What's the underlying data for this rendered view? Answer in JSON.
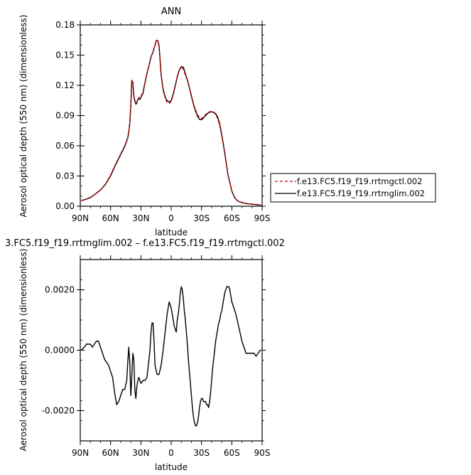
{
  "chart_data": [
    {
      "type": "line",
      "title": "ANN",
      "xlabel": "latitude",
      "ylabel": "Aerosol optical depth (550 nm) (dimensionless)",
      "xlim": [
        90,
        -90
      ],
      "ylim": [
        0,
        0.18
      ],
      "x_ticks": [
        90,
        60,
        30,
        0,
        -30,
        -60,
        -90
      ],
      "x_tick_labels": [
        "90N",
        "60N",
        "30N",
        "0",
        "30S",
        "60S",
        "90S"
      ],
      "y_ticks": [
        0,
        0.03,
        0.06,
        0.09,
        0.12,
        0.15,
        0.18
      ],
      "y_tick_labels": [
        "0.00",
        "0.03",
        "0.06",
        "0.09",
        "0.12",
        "0.15",
        "0.18"
      ],
      "legend_position": "right",
      "series": [
        {
          "name": "f.e13.FC5.f19_f19.rrtmgctl.002",
          "color": "#cc0000",
          "dash": "dashed",
          "x": [
            89,
            85,
            80,
            75,
            70,
            65,
            60,
            55,
            50,
            46,
            43,
            42,
            41,
            40,
            39,
            38,
            37,
            36,
            35,
            34,
            33,
            32,
            31,
            30,
            28,
            26,
            24,
            22,
            20,
            18,
            16,
            15,
            14,
            13,
            12,
            11,
            10,
            8,
            6,
            4,
            2,
            0,
            -2,
            -4,
            -6,
            -8,
            -10,
            -12,
            -13,
            -14,
            -16,
            -18,
            -20,
            -22,
            -24,
            -26,
            -28,
            -30,
            -33,
            -36,
            -39,
            -42,
            -44,
            -46,
            -48,
            -50,
            -53,
            -56,
            -60,
            -63,
            -66,
            -70,
            -75,
            -80,
            -85,
            -89
          ],
          "y": [
            0.0055,
            0.0065,
            0.0085,
            0.012,
            0.016,
            0.022,
            0.031,
            0.042,
            0.052,
            0.06,
            0.068,
            0.074,
            0.082,
            0.1,
            0.125,
            0.123,
            0.11,
            0.106,
            0.102,
            0.103,
            0.107,
            0.108,
            0.107,
            0.109,
            0.113,
            0.123,
            0.132,
            0.14,
            0.148,
            0.153,
            0.16,
            0.164,
            0.165,
            0.164,
            0.159,
            0.145,
            0.13,
            0.115,
            0.107,
            0.103,
            0.102,
            0.104,
            0.11,
            0.119,
            0.128,
            0.135,
            0.138,
            0.136,
            0.133,
            0.13,
            0.125,
            0.118,
            0.11,
            0.102,
            0.096,
            0.091,
            0.088,
            0.087,
            0.09,
            0.093,
            0.094,
            0.093,
            0.091,
            0.087,
            0.08,
            0.07,
            0.052,
            0.032,
            0.015,
            0.008,
            0.005,
            0.0035,
            0.0025,
            0.002,
            0.0015,
            0.001
          ]
        },
        {
          "name": "f.e13.FC5.f19_f19.rrtmglim.002",
          "color": "#000000",
          "dash": "solid",
          "x": [
            89,
            85,
            80,
            75,
            70,
            65,
            60,
            55,
            50,
            46,
            43,
            42,
            41,
            40,
            39,
            38,
            37,
            36,
            35,
            34,
            33,
            32,
            31,
            30,
            28,
            26,
            24,
            22,
            20,
            18,
            16,
            15,
            14,
            13,
            12,
            11,
            10,
            8,
            6,
            4,
            2,
            0,
            -2,
            -4,
            -6,
            -8,
            -10,
            -12,
            -13,
            -14,
            -16,
            -18,
            -20,
            -22,
            -24,
            -26,
            -28,
            -30,
            -33,
            -36,
            -39,
            -42,
            -44,
            -46,
            -48,
            -50,
            -53,
            -56,
            -60,
            -63,
            -66,
            -70,
            -75,
            -80,
            -85,
            -89
          ],
          "y": [
            0.0057,
            0.0067,
            0.0087,
            0.0122,
            0.0162,
            0.0218,
            0.0302,
            0.0412,
            0.0512,
            0.0593,
            0.0677,
            0.0737,
            0.0825,
            0.1,
            0.125,
            0.1229,
            0.1091,
            0.1045,
            0.1013,
            0.1022,
            0.1061,
            0.1069,
            0.1059,
            0.1081,
            0.1119,
            0.1221,
            0.1317,
            0.1396,
            0.1482,
            0.1532,
            0.1599,
            0.1637,
            0.1648,
            0.1636,
            0.1589,
            0.1451,
            0.1307,
            0.1162,
            0.1085,
            0.1046,
            0.1034,
            0.1049,
            0.1112,
            0.1198,
            0.1285,
            0.1355,
            0.1387,
            0.138,
            0.1348,
            0.1315,
            0.1255,
            0.1175,
            0.1092,
            0.1011,
            0.0946,
            0.0894,
            0.0862,
            0.0858,
            0.0888,
            0.0922,
            0.0937,
            0.0934,
            0.0918,
            0.0885,
            0.0818,
            0.0712,
            0.0529,
            0.0323,
            0.0151,
            0.0081,
            0.0051,
            0.0036,
            0.0026,
            0.002,
            0.0015,
            0.001
          ]
        }
      ]
    },
    {
      "type": "line",
      "title": "3.FC5.f19_f19.rrtmglim.002 – f.e13.FC5.f19_f19.rrtmgctl.002",
      "xlabel": "latitude",
      "ylabel": "Aerosol optical depth (550 nm) (dimensionless)",
      "xlim": [
        90,
        -90
      ],
      "ylim": [
        -0.003,
        0.003
      ],
      "x_ticks": [
        90,
        60,
        30,
        0,
        -30,
        -60,
        -90
      ],
      "x_tick_labels": [
        "90N",
        "60N",
        "30N",
        "0",
        "30S",
        "60S",
        "90S"
      ],
      "y_ticks": [
        -0.002,
        0,
        0.002
      ],
      "y_tick_labels": [
        "-0.0020",
        "0.0000",
        "0.0020"
      ],
      "series": [
        {
          "name": "",
          "color": "#000000",
          "dash": "solid",
          "x": [
            89,
            86,
            84,
            82,
            80,
            78,
            76,
            74,
            72,
            70,
            68,
            66,
            64,
            62,
            60,
            58,
            56,
            54,
            52,
            50,
            48,
            46,
            44,
            43,
            42,
            41,
            40,
            39,
            38,
            37,
            36,
            35,
            34,
            33,
            32,
            31,
            30,
            28,
            26,
            24,
            23,
            22,
            21,
            20,
            19,
            18,
            17,
            16,
            14,
            12,
            10,
            8,
            6,
            4,
            2,
            1,
            0,
            -1,
            -2,
            -3,
            -4,
            -5,
            -6,
            -7,
            -8,
            -9,
            -10,
            -11,
            -12,
            -13,
            -14,
            -15,
            -16,
            -17,
            -18,
            -19,
            -20,
            -21,
            -22,
            -23,
            -24,
            -25,
            -26,
            -27,
            -28,
            -29,
            -30,
            -31,
            -32,
            -33,
            -34,
            -35,
            -36,
            -37,
            -38,
            -39,
            -40,
            -41,
            -42,
            -43,
            -44,
            -45,
            -46,
            -47,
            -48,
            -49,
            -50,
            -51,
            -52,
            -53,
            -54,
            -55,
            -56,
            -57,
            -58,
            -59,
            -60,
            -62,
            -64,
            -66,
            -68,
            -70,
            -72,
            -74,
            -76,
            -78,
            -80,
            -82,
            -84,
            -86,
            -88,
            -89
          ],
          "y": [
            0,
            0.0001,
            0.0002,
            0.0002,
            0.0002,
            0.0001,
            0.0002,
            0.0003,
            0.0003,
            0.0001,
            -0.0001,
            -0.0003,
            -0.0004,
            -0.0005,
            -0.0007,
            -0.0009,
            -0.0014,
            -0.0018,
            -0.0017,
            -0.0015,
            -0.0013,
            -0.0013,
            -0.001,
            -0.0004,
            0.0001,
            -0.0004,
            -0.0015,
            -0.0009,
            -0.0001,
            -0.0003,
            -0.0013,
            -0.0016,
            -0.0012,
            -0.001,
            -0.0009,
            -0.001,
            -0.0011,
            -0.001,
            -0.001,
            -0.0009,
            -0.0006,
            -0.0003,
            0,
            0.0006,
            0.0009,
            0.0009,
            0.0003,
            -0.0005,
            -0.0008,
            -0.0008,
            -0.0005,
            0,
            0.0006,
            0.0012,
            0.0016,
            0.0015,
            0.0014,
            0.0012,
            0.001,
            0.0008,
            0.0007,
            0.0006,
            0.001,
            0.0012,
            0.0015,
            0.0019,
            0.0021,
            0.002,
            0.0017,
            0.0013,
            0.001,
            0.0006,
            0.0002,
            -0.0003,
            -0.0007,
            -0.0011,
            -0.0015,
            -0.0019,
            -0.0022,
            -0.0024,
            -0.0025,
            -0.0025,
            -0.0024,
            -0.0022,
            -0.0019,
            -0.0017,
            -0.0016,
            -0.0016,
            -0.0017,
            -0.0017,
            -0.0017,
            -0.0018,
            -0.0018,
            -0.0019,
            -0.0017,
            -0.0014,
            -0.001,
            -0.0006,
            -0.0003,
            0,
            0.0003,
            0.0005,
            0.0007,
            0.0009,
            0.001,
            0.0012,
            0.0013,
            0.0015,
            0.0017,
            0.0019,
            0.002,
            0.0021,
            0.0021,
            0.0021,
            0.002,
            0.0018,
            0.0016,
            0.0014,
            0.0012,
            0.0009,
            0.0006,
            0.0003,
            0.0001,
            -0.0001,
            -0.0001,
            -0.0001,
            -0.0001,
            -0.0001,
            -0.0002,
            -0.0001,
            0,
            0
          ]
        }
      ]
    }
  ],
  "colors": {
    "line_red": "#cc0000",
    "line_black": "#000000",
    "frame": "#000000"
  }
}
